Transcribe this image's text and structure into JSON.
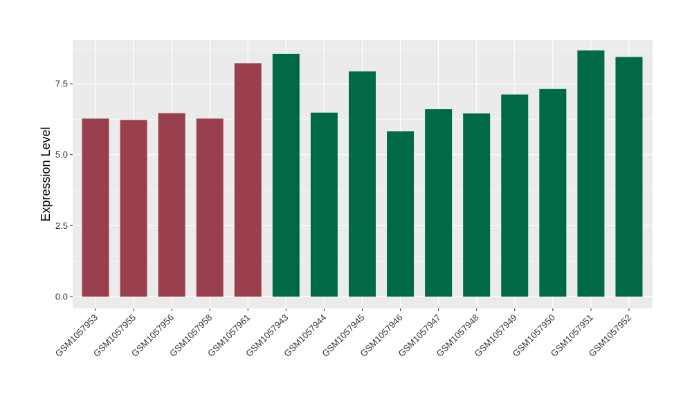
{
  "chart_data": {
    "type": "bar",
    "title": "",
    "xlabel": "",
    "ylabel": "Expression Level",
    "ylim": [
      0,
      9.1
    ],
    "yticks": [
      0.0,
      2.5,
      5.0,
      7.5
    ],
    "ytick_labels": [
      "0.0",
      "2.5",
      "5.0",
      "7.5"
    ],
    "grid": true,
    "legend": "none",
    "colors": {
      "group_a": "#9A3F4E",
      "group_b": "#006A44",
      "panel": "#EBEBEB",
      "gridline": "#FFFFFF"
    },
    "categories": [
      "GSM1057953",
      "GSM1057955",
      "GSM1057956",
      "GSM1057958",
      "GSM1057961",
      "GSM1057943",
      "GSM1057944",
      "GSM1057945",
      "GSM1057946",
      "GSM1057947",
      "GSM1057948",
      "GSM1057949",
      "GSM1057950",
      "GSM1057951",
      "GSM1057952"
    ],
    "values": [
      6.27,
      6.22,
      6.46,
      6.27,
      8.22,
      8.55,
      6.48,
      7.93,
      5.82,
      6.6,
      6.45,
      7.12,
      7.31,
      8.67,
      8.44
    ],
    "groups": [
      "a",
      "a",
      "a",
      "a",
      "a",
      "b",
      "b",
      "b",
      "b",
      "b",
      "b",
      "b",
      "b",
      "b",
      "b"
    ]
  }
}
